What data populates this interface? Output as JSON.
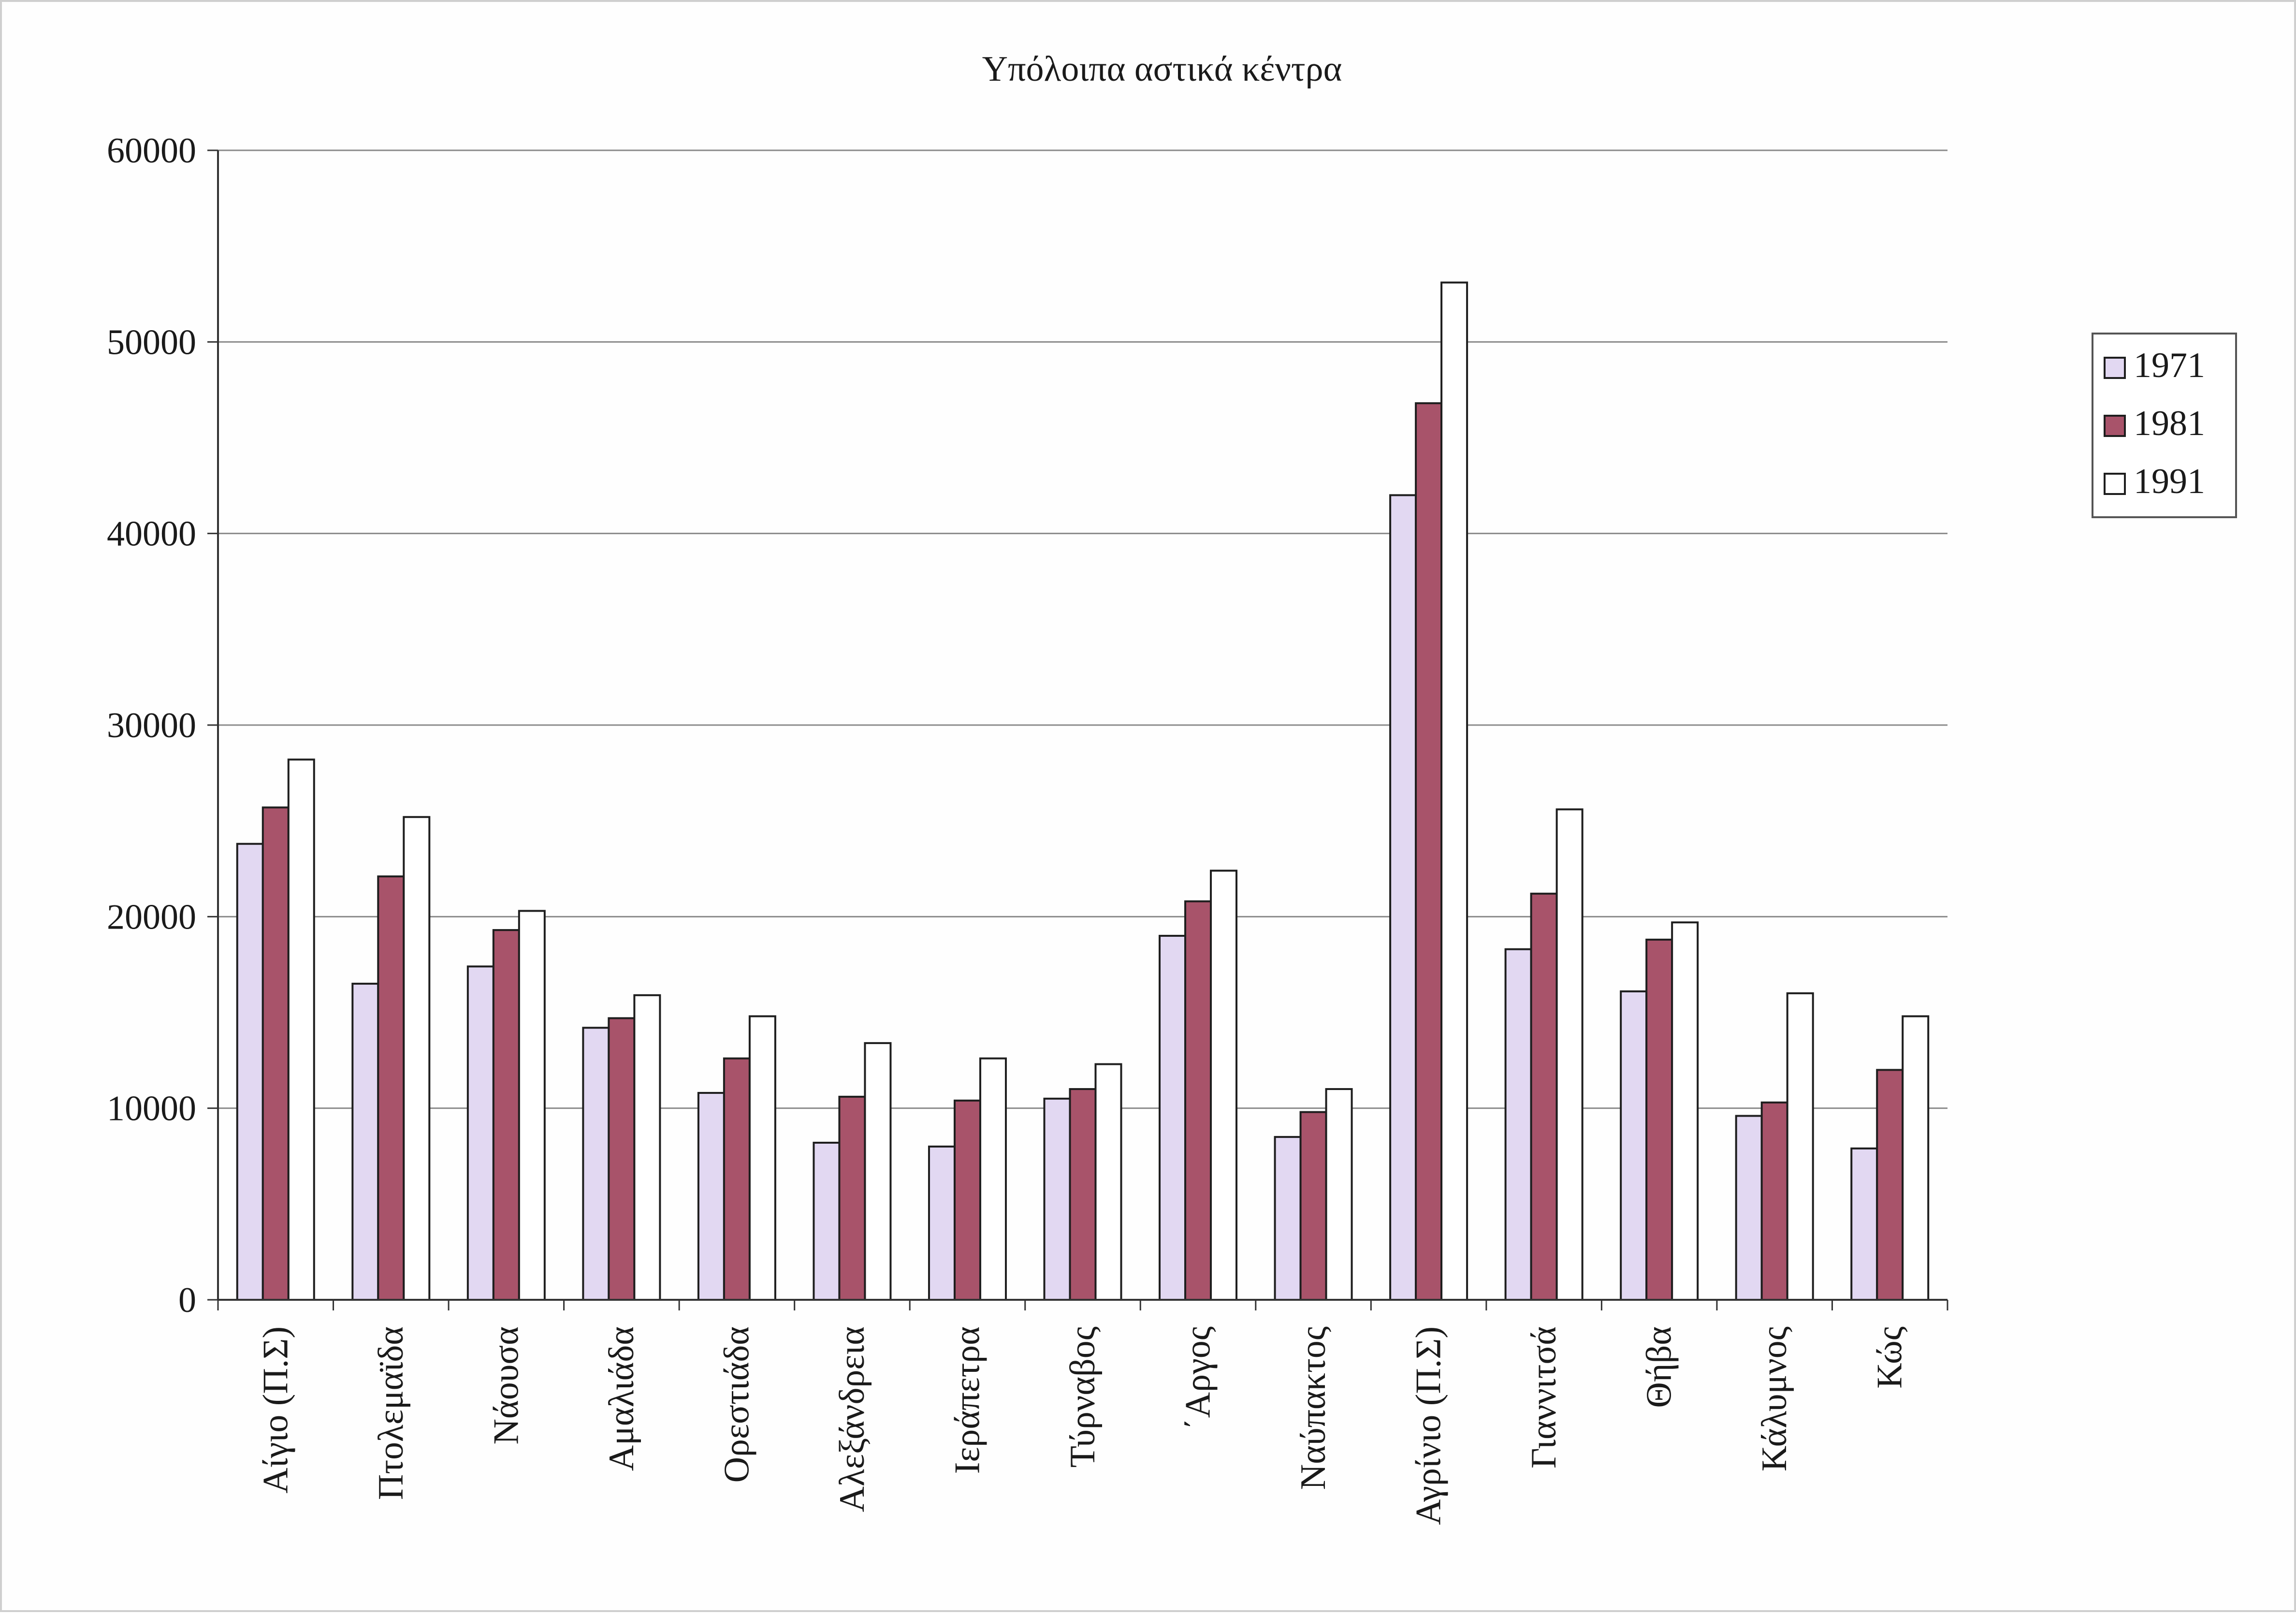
{
  "chart_data": {
    "type": "bar",
    "title": "Υπόλοιπα αστικά κέντρα",
    "xlabel": "",
    "ylabel": "",
    "ylim": [
      0,
      60000
    ],
    "yticks": [
      0,
      10000,
      20000,
      30000,
      40000,
      50000,
      60000
    ],
    "grid": true,
    "legend_position": "right",
    "categories": [
      "Αίγιο (Π.Σ)",
      "Πτολεμαϊδα",
      "Νάουσα",
      "Αμαλιάδα",
      "Ορεστιάδα",
      "Αλεξάνδρεια",
      "Ιεράπετρα",
      "Τύρναβος",
      "΄Αργος",
      "Ναύπακτος",
      "Αγρίνιο (Π.Σ)",
      "Γιαννιτσά",
      "Θήβα",
      "Κάλυμνος",
      "Κώς"
    ],
    "series": [
      {
        "name": "1971",
        "color": "#e2d8f2",
        "values": [
          23800,
          16500,
          17400,
          14200,
          10800,
          8200,
          8000,
          10500,
          19000,
          8500,
          42000,
          18300,
          16100,
          9600,
          7900
        ]
      },
      {
        "name": "1981",
        "color": "#a8536a",
        "values": [
          25700,
          22100,
          19300,
          14700,
          12600,
          10600,
          10400,
          11000,
          20800,
          9800,
          46800,
          21200,
          18800,
          10300,
          12000
        ]
      },
      {
        "name": "1991",
        "color": "#ffffff",
        "values": [
          28200,
          25200,
          20300,
          15900,
          14800,
          13400,
          12600,
          12300,
          22400,
          11000,
          53100,
          25600,
          19700,
          16000,
          14800
        ]
      }
    ]
  }
}
